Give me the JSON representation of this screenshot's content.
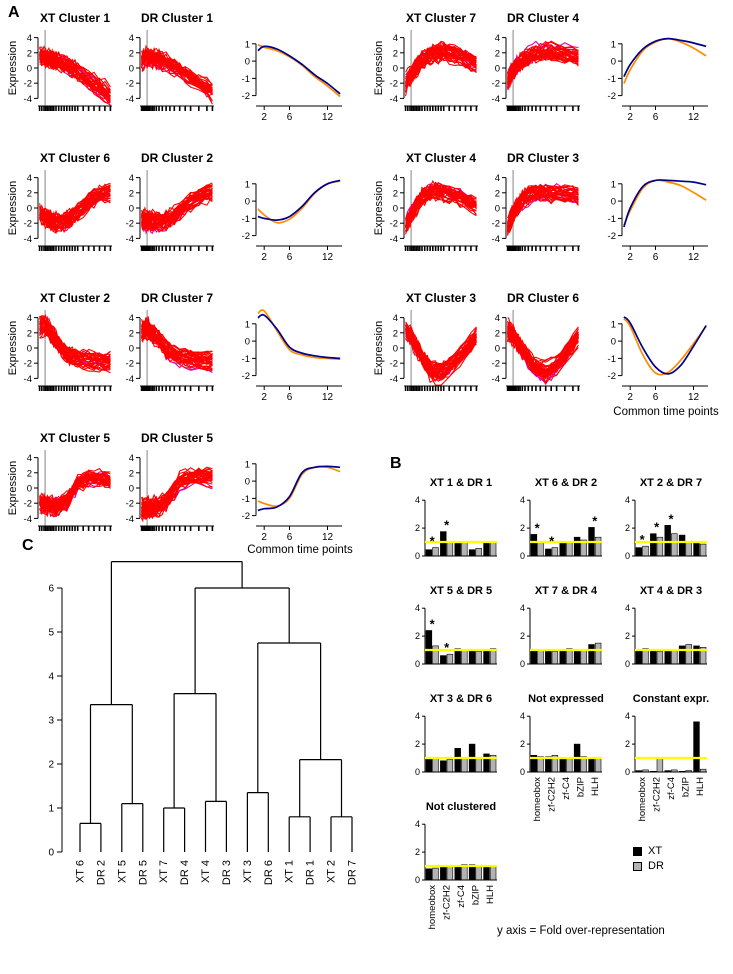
{
  "figure": {
    "panel_a_label": "A",
    "panel_b_label": "B",
    "panel_c_label": "C"
  },
  "colors": {
    "spaghetti_red": "#ff0000",
    "spaghetti_magenta": "#e6009e",
    "xt_mean_line": "#ff8c00",
    "dr_mean_line": "#00008b",
    "time_guide": "#999999",
    "threshold_yellow": "#ffff00",
    "bar_xt": "#000000",
    "bar_dr": "#b3b3b3",
    "star_red": "#ff0000",
    "star_blue": "#0000ff"
  },
  "chart_data": [
    {
      "id": "panel-a-expression-clusters",
      "type": "line",
      "ylabel": "Expression",
      "cluster_ylim": [
        -5,
        5
      ],
      "cluster_y_ticks": [
        -4,
        -2,
        0,
        2,
        4
      ],
      "xlim": [
        0.7,
        14.3
      ],
      "x": [
        1,
        2,
        4,
        6,
        8,
        10,
        12,
        14
      ],
      "time_guide_x": 2,
      "xt_time_points": [
        1,
        1.4,
        1.8,
        2.1,
        2.4,
        2.7,
        3,
        3.3,
        3.6,
        4,
        4.5,
        5,
        5.5,
        6,
        6.5,
        7,
        7.5,
        8,
        9,
        10,
        11,
        12,
        13,
        14
      ],
      "dr_time_points": [
        1,
        1.2,
        1.4,
        1.6,
        1.8,
        2,
        2.2,
        2.4,
        2.7,
        3,
        3.3,
        3.7,
        4.2,
        4.8,
        5.5,
        6.2,
        7,
        8,
        9,
        10,
        11.5,
        13,
        14
      ],
      "comparison_ylim": [
        -2.6,
        1.8
      ],
      "comparison_y_ticks": [
        -2,
        -1,
        0,
        1
      ],
      "comparison_x_ticks": [
        2,
        6,
        12
      ],
      "common_time_label": "Common time points",
      "left_rows": [
        {
          "xt_title": "XT Cluster 1",
          "dr_title": "DR Cluster 1",
          "xt_mean": [
            0.95,
            0.8,
            0.6,
            0.25,
            -0.25,
            -0.9,
            -1.45,
            -2.05
          ],
          "dr_mean": [
            0.6,
            0.85,
            0.7,
            0.3,
            -0.2,
            -0.8,
            -1.3,
            -1.9
          ]
        },
        {
          "xt_title": "XT Cluster 6",
          "dr_title": "DR Cluster 2",
          "xt_mean": [
            -0.45,
            -0.8,
            -1.25,
            -1.05,
            -0.4,
            0.45,
            1.0,
            1.15
          ],
          "dr_mean": [
            -0.9,
            -1.0,
            -1.1,
            -0.9,
            -0.3,
            0.5,
            1.0,
            1.2
          ]
        },
        {
          "xt_title": "XT Cluster 2",
          "dr_title": "DR Cluster 7",
          "xt_mean": [
            1.6,
            1.75,
            0.6,
            -0.5,
            -0.8,
            -0.95,
            -1.0,
            -1.05
          ],
          "dr_mean": [
            1.35,
            1.5,
            0.7,
            -0.35,
            -0.7,
            -0.85,
            -0.95,
            -1.0
          ]
        },
        {
          "xt_title": "XT Cluster 5",
          "dr_title": "DR Cluster 5",
          "xt_mean": [
            -1.15,
            -1.3,
            -1.45,
            -1.0,
            0.4,
            0.8,
            0.8,
            0.55
          ],
          "dr_mean": [
            -1.7,
            -1.6,
            -1.5,
            -0.9,
            0.5,
            0.8,
            0.85,
            0.8
          ]
        }
      ],
      "right_rows": [
        {
          "xt_title": "XT Cluster 7",
          "dr_title": "DR Cluster 4",
          "xt_mean": [
            -1.3,
            -0.5,
            0.6,
            1.1,
            1.3,
            1.1,
            0.75,
            0.3
          ],
          "dr_mean": [
            -0.9,
            -0.2,
            0.7,
            1.15,
            1.3,
            1.2,
            1.05,
            0.85
          ]
        },
        {
          "xt_title": "XT Cluster 4",
          "dr_title": "DR Cluster 3",
          "xt_mean": [
            -1.4,
            -0.55,
            0.75,
            1.2,
            1.1,
            0.9,
            0.5,
            0.05
          ],
          "dr_mean": [
            -1.5,
            -0.4,
            0.85,
            1.2,
            1.2,
            1.15,
            1.1,
            0.95
          ]
        },
        {
          "xt_title": "XT Cluster 3",
          "dr_title": "DR Cluster 6",
          "xt_mean": [
            1.3,
            0.85,
            -0.8,
            -1.85,
            -1.8,
            -1.1,
            -0.15,
            0.85
          ],
          "dr_mean": [
            1.4,
            1.05,
            -0.4,
            -1.5,
            -1.9,
            -1.4,
            -0.3,
            0.9
          ]
        }
      ]
    },
    {
      "id": "panel-b-fold-over-representation",
      "type": "bar",
      "categories": [
        "homeobox",
        "zf-C2H2",
        "zf-C4",
        "bZIP",
        "HLH"
      ],
      "series_names": [
        "XT",
        "DR"
      ],
      "ylim": [
        0,
        4.3
      ],
      "y_ticks": [
        0,
        2,
        4
      ],
      "threshold": 1,
      "star_glyph": "*",
      "caption": "y axis = Fold over-representation",
      "legend": [
        {
          "label": "XT",
          "color": "#000000"
        },
        {
          "label": "DR",
          "color": "#b3b3b3"
        }
      ],
      "charts": [
        {
          "title": "XT 1 & DR 1",
          "show_xcats": false,
          "xt": [
            0.45,
            1.75,
            0.9,
            0.45,
            0.95
          ],
          "dr": [
            0.6,
            1.05,
            0.95,
            0.55,
            1.0
          ],
          "stars": [
            {
              "cat": 0,
              "color": "blue"
            },
            {
              "cat": 1,
              "color": "red"
            }
          ]
        },
        {
          "title": "XT 6 & DR 2",
          "show_xcats": false,
          "xt": [
            1.55,
            0.5,
            0.9,
            1.35,
            2.05
          ],
          "dr": [
            1.0,
            0.6,
            1.0,
            1.15,
            1.35
          ],
          "stars": [
            {
              "cat": 0,
              "color": "red"
            },
            {
              "cat": 1,
              "color": "blue"
            },
            {
              "cat": 4,
              "color": "red"
            }
          ]
        },
        {
          "title": "XT 2 & DR 7",
          "show_xcats": false,
          "xt": [
            0.6,
            1.6,
            2.2,
            1.5,
            0.9
          ],
          "dr": [
            0.7,
            1.35,
            1.6,
            1.05,
            0.85
          ],
          "stars": [
            {
              "cat": 0,
              "color": "blue"
            },
            {
              "cat": 1,
              "color": "red"
            },
            {
              "cat": 2,
              "color": "red"
            }
          ]
        },
        {
          "title": "XT 5 & DR 5",
          "show_xcats": false,
          "xt": [
            2.4,
            0.6,
            1.1,
            1.05,
            1.0
          ],
          "dr": [
            1.3,
            0.7,
            1.0,
            0.9,
            1.1
          ],
          "stars": [
            {
              "cat": 0,
              "color": "red"
            },
            {
              "cat": 1,
              "color": "blue"
            }
          ]
        },
        {
          "title": "XT 7 & DR 4",
          "show_xcats": false,
          "xt": [
            1.0,
            0.9,
            1.0,
            0.9,
            1.4
          ],
          "dr": [
            1.0,
            0.9,
            1.1,
            1.0,
            1.5
          ],
          "stars": []
        },
        {
          "title": "XT 4 & DR 3",
          "show_xcats": false,
          "xt": [
            1.05,
            1.0,
            0.9,
            1.3,
            1.3
          ],
          "dr": [
            1.1,
            0.9,
            1.0,
            1.4,
            1.2
          ],
          "stars": []
        },
        {
          "title": "XT 3 & DR 6",
          "show_xcats": false,
          "xt": [
            0.9,
            0.8,
            1.7,
            2.0,
            1.3
          ],
          "dr": [
            1.0,
            0.9,
            1.0,
            0.95,
            1.2
          ],
          "stars": []
        },
        {
          "title": "Not expressed",
          "show_xcats": true,
          "xt": [
            1.2,
            1.1,
            0.9,
            2.0,
            1.0
          ],
          "dr": [
            1.1,
            1.2,
            1.0,
            1.1,
            1.0
          ],
          "stars": []
        },
        {
          "title": "Constant expr.",
          "show_xcats": true,
          "xt": [
            0.1,
            0.05,
            0.1,
            0.05,
            3.6
          ],
          "dr": [
            0.15,
            1.0,
            0.15,
            0.1,
            0.2
          ],
          "stars": []
        },
        {
          "title": "Not clustered",
          "show_xcats": true,
          "xt": [
            0.8,
            0.9,
            1.0,
            1.1,
            0.9
          ],
          "dr": [
            0.85,
            0.95,
            1.1,
            1.0,
            1.0
          ],
          "stars": []
        }
      ]
    },
    {
      "id": "panel-c-cluster-dendrogram",
      "type": "dendrogram",
      "y_ticks": [
        0,
        1,
        2,
        3,
        4,
        5,
        6
      ],
      "leaves": [
        "XT 6",
        "DR 2",
        "XT 5",
        "DR 5",
        "XT 7",
        "DR 4",
        "XT 4",
        "DR 3",
        "XT 3",
        "DR 6",
        "XT 1",
        "DR 1",
        "XT 2",
        "DR 7"
      ],
      "tree": {
        "h": 6.6,
        "c": [
          {
            "h": 3.35,
            "c": [
              {
                "h": 0.65,
                "c": [
                  {
                    "l": "XT 6"
                  },
                  {
                    "l": "DR 2"
                  }
                ]
              },
              {
                "h": 1.1,
                "c": [
                  {
                    "l": "XT 5"
                  },
                  {
                    "l": "DR 5"
                  }
                ]
              }
            ]
          },
          {
            "h": 6.0,
            "c": [
              {
                "h": 3.6,
                "c": [
                  {
                    "h": 1.0,
                    "c": [
                      {
                        "l": "XT 7"
                      },
                      {
                        "l": "DR 4"
                      }
                    ]
                  },
                  {
                    "h": 1.15,
                    "c": [
                      {
                        "l": "XT 4"
                      },
                      {
                        "l": "DR 3"
                      }
                    ]
                  }
                ]
              },
              {
                "h": 4.75,
                "c": [
                  {
                    "h": 1.35,
                    "c": [
                      {
                        "l": "XT 3"
                      },
                      {
                        "l": "DR 6"
                      }
                    ]
                  },
                  {
                    "h": 2.1,
                    "c": [
                      {
                        "h": 0.8,
                        "c": [
                          {
                            "l": "XT 1"
                          },
                          {
                            "l": "DR 1"
                          }
                        ]
                      },
                      {
                        "h": 0.8,
                        "c": [
                          {
                            "l": "XT 2"
                          },
                          {
                            "l": "DR 7"
                          }
                        ]
                      }
                    ]
                  }
                ]
              }
            ]
          }
        ]
      }
    }
  ]
}
